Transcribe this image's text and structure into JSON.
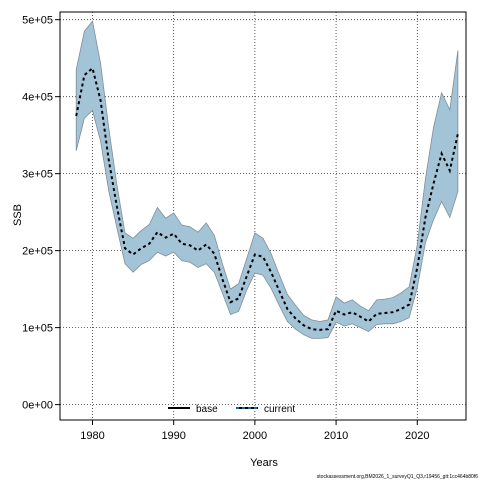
{
  "chart_data": {
    "type": "line",
    "title": "",
    "xlabel": "Years",
    "ylabel": "SSB",
    "xlim": [
      1976,
      2026
    ],
    "ylim": [
      -20000,
      510000
    ],
    "x_ticks": [
      1980,
      1990,
      2000,
      2010,
      2020
    ],
    "y_ticks": [
      0,
      100000,
      200000,
      300000,
      400000,
      500000
    ],
    "y_tick_labels": [
      "0e+00",
      "1e+05",
      "2e+05",
      "3e+05",
      "4e+05",
      "5e+05"
    ],
    "grid": true,
    "legend_placement": "bottom-center",
    "legend": [
      {
        "name": "base",
        "style": "solid",
        "color": "#000000"
      },
      {
        "name": "current",
        "style": "dashed",
        "color": "#000000",
        "accent": "#1b6c8c"
      }
    ],
    "band_color": "#a3c3d6",
    "band_edge_color": "#7f8f98",
    "x": [
      1978,
      1979,
      1980,
      1981,
      1982,
      1983,
      1984,
      1985,
      1986,
      1987,
      1988,
      1989,
      1990,
      1991,
      1992,
      1993,
      1994,
      1995,
      1996,
      1997,
      1998,
      1999,
      2000,
      2001,
      2002,
      2003,
      2004,
      2005,
      2006,
      2007,
      2008,
      2009,
      2010,
      2011,
      2012,
      2013,
      2014,
      2015,
      2016,
      2017,
      2018,
      2019,
      2020,
      2021,
      2022,
      2023,
      2024,
      2025
    ],
    "series": [
      {
        "name": "current",
        "values": [
          375000,
          428000,
          437000,
          395000,
          318000,
          258000,
          203000,
          195000,
          203000,
          209000,
          224000,
          217000,
          222000,
          209000,
          207000,
          200000,
          208000,
          196000,
          163000,
          133000,
          138000,
          167000,
          195000,
          192000,
          172000,
          148000,
          124000,
          112000,
          103000,
          98000,
          97000,
          98000,
          122000,
          117000,
          120000,
          114000,
          108000,
          118000,
          119000,
          120000,
          124000,
          130000,
          178000,
          243000,
          287000,
          326000,
          304000,
          352000
        ],
        "lower": [
          330000,
          372000,
          382000,
          342000,
          278000,
          230000,
          183000,
          172000,
          182000,
          187000,
          198000,
          193000,
          198000,
          187000,
          185000,
          178000,
          183000,
          172000,
          145000,
          117000,
          121000,
          149000,
          171000,
          168000,
          151000,
          129000,
          108000,
          98000,
          91000,
          86000,
          86000,
          87000,
          107000,
          102000,
          105000,
          100000,
          95000,
          104000,
          105000,
          105000,
          108000,
          113000,
          152000,
          210000,
          240000,
          264000,
          243000,
          277000
        ],
        "upper": [
          435000,
          485000,
          498000,
          443000,
          360000,
          286000,
          223000,
          216000,
          226000,
          234000,
          256000,
          242000,
          249000,
          233000,
          231000,
          224000,
          236000,
          220000,
          183000,
          150000,
          157000,
          190000,
          223000,
          216000,
          196000,
          169000,
          143000,
          129000,
          116000,
          110000,
          108000,
          110000,
          140000,
          132000,
          136000,
          128000,
          122000,
          136000,
          137000,
          139000,
          145000,
          153000,
          208000,
          293000,
          360000,
          405000,
          383000,
          460000
        ]
      }
    ]
  },
  "footer": "stockassessment.org,BM2026_1_surveyQ1_Q3,r19456_git:1cc464b80f6"
}
